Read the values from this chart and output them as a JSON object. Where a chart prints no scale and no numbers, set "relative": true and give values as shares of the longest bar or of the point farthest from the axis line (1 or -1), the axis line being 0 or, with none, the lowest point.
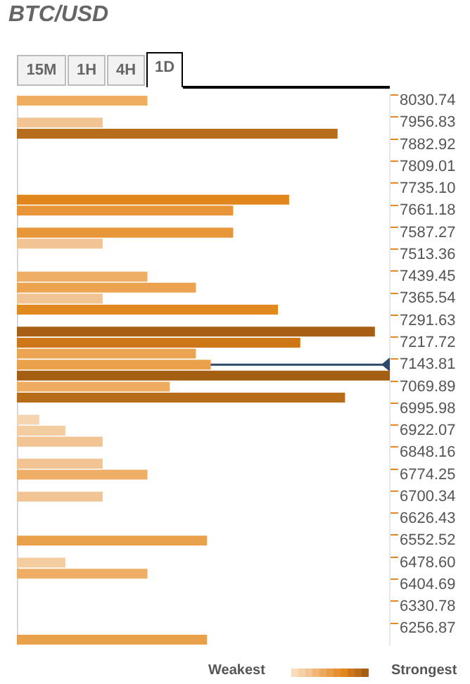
{
  "chart_data": {
    "type": "bar",
    "title": "BTC/USD",
    "orientation": "horizontal",
    "relative": true,
    "categories": [
      "8030.74",
      null,
      "7956.83",
      null,
      "7882.92",
      null,
      "7809.01",
      null,
      "7735.10",
      null,
      "7661.18",
      null,
      "7587.27",
      null,
      "7513.36",
      null,
      "7439.45",
      null,
      "7365.54",
      null,
      "7291.63",
      null,
      "7217.72",
      null,
      "7143.81",
      null,
      "7069.89",
      null,
      "6995.98",
      null,
      "6922.07",
      null,
      "6848.16",
      null,
      "6774.25",
      null,
      "6700.34",
      null,
      "6626.43",
      null,
      "6552.52",
      null,
      "6478.60",
      null,
      "6404.69",
      null,
      "6330.78",
      null,
      "6256.87",
      null
    ],
    "values": [
      0.35,
      null,
      0.23,
      0.86,
      null,
      null,
      null,
      null,
      null,
      0.73,
      0.58,
      null,
      0.58,
      0.23,
      null,
      null,
      0.35,
      0.48,
      0.23,
      0.7,
      null,
      0.96,
      0.76,
      0.48,
      0.52,
      1,
      0.41,
      0.88,
      null,
      0.06,
      0.13,
      0.23,
      null,
      0.23,
      0.35,
      null,
      0.23,
      null,
      null,
      null,
      0.51,
      null,
      0.13,
      0.35,
      null,
      null,
      null,
      null,
      null,
      0.51
    ],
    "colors": [
      "#efad62",
      null,
      "#f2c493",
      "#b76d1b",
      null,
      null,
      null,
      null,
      null,
      "#e0861c",
      "#e8953a",
      null,
      "#e8963a",
      "#f2c493",
      null,
      null,
      "#efae65",
      "#eba34f",
      "#f2c493",
      "#e0891f",
      null,
      "#a65f14",
      "#cd7719",
      "#eba552",
      "#eba14b",
      "#a55f13",
      "#eeac60",
      "#b66c19",
      null,
      "#f5d5b0",
      "#f3cc9f",
      "#f2c493",
      null,
      "#f2c493",
      "#eeae66",
      null,
      "#f2c493",
      null,
      null,
      null,
      "#e9a04a",
      null,
      "#f3cc9f",
      "#eeae66",
      null,
      null,
      null,
      null,
      null,
      "#e9a04a"
    ],
    "ref_lines": [
      {
        "axis": "y",
        "value": "7143.81",
        "color": "#2e4a6b"
      }
    ],
    "annotations": [
      "15M",
      "1H",
      "4H",
      "1D",
      "Weakest",
      "Strongest"
    ],
    "legend": false
  }
}
